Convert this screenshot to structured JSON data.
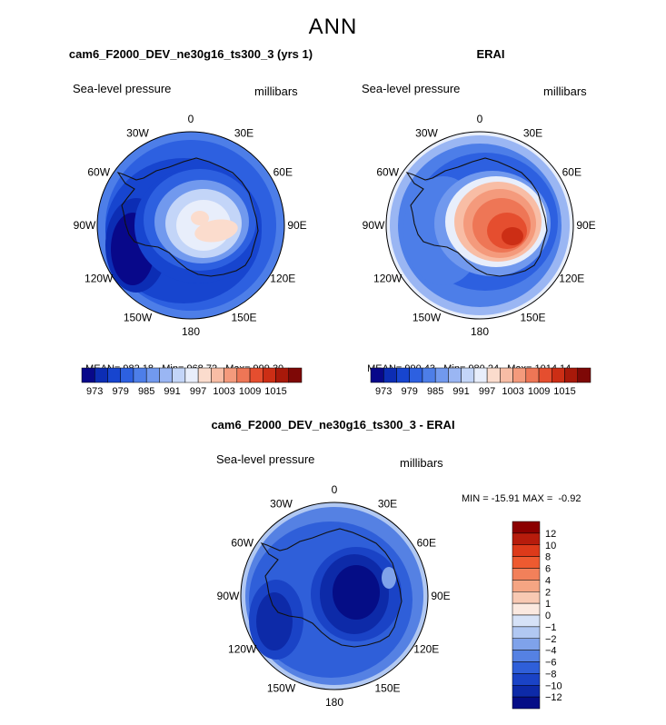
{
  "main_title": "ANN",
  "chart_data": [
    {
      "type": "polar-contour",
      "title": "cam6_F2000_DEV_ne30g16_ts300_3 (yrs 1)",
      "left_label": "Sea-level pressure",
      "right_label": "millibars",
      "lon_labels": [
        "0",
        "30E",
        "60E",
        "90E",
        "120E",
        "150E",
        "180",
        "150W",
        "120W",
        "90W",
        "60W",
        "30W"
      ],
      "stats": {
        "mean": "982.18",
        "min": "968.72",
        "max": "999.30"
      },
      "colorbar": {
        "orientation": "horizontal",
        "tick_labels": [
          "973",
          "979",
          "985",
          "991",
          "997",
          "1003",
          "1009",
          "1015"
        ],
        "colors": [
          "#08088a",
          "#0c2db4",
          "#1745cf",
          "#2d60e0",
          "#4d7ee8",
          "#7199ee",
          "#9ab6f3",
          "#c3d5f8",
          "#e8eefb",
          "#fbdccd",
          "#f8bda5",
          "#f49a7c",
          "#ee7656",
          "#e54e2f",
          "#cc2e15",
          "#a8190a",
          "#7e0806"
        ]
      }
    },
    {
      "type": "polar-contour",
      "title": "ERAI",
      "left_label": "Sea-level pressure",
      "right_label": "millibars",
      "lon_labels": [
        "0",
        "30E",
        "60E",
        "90E",
        "120E",
        "150E",
        "180",
        "150W",
        "120W",
        "90W",
        "60W",
        "30W"
      ],
      "stats": {
        "mean": "990.43",
        "min": "980.24",
        "max": "1014.14"
      },
      "colorbar": {
        "orientation": "horizontal",
        "tick_labels": [
          "973",
          "979",
          "985",
          "991",
          "997",
          "1003",
          "1009",
          "1015"
        ],
        "colors": [
          "#08088a",
          "#0c2db4",
          "#1745cf",
          "#2d60e0",
          "#4d7ee8",
          "#7199ee",
          "#9ab6f3",
          "#c3d5f8",
          "#e8eefb",
          "#fbdccd",
          "#f8bda5",
          "#f49a7c",
          "#ee7656",
          "#e54e2f",
          "#cc2e15",
          "#a8190a",
          "#7e0806"
        ]
      }
    },
    {
      "type": "polar-contour",
      "title": "cam6_F2000_DEV_ne30g16_ts300_3 - ERAI",
      "left_label": "Sea-level pressure",
      "right_label": "millibars",
      "lon_labels": [
        "0",
        "30E",
        "60E",
        "90E",
        "120E",
        "150E",
        "180",
        "150W",
        "120W",
        "90W",
        "60W",
        "30W"
      ],
      "stats_line": "MIN = -15.91 MAX =  -0.92",
      "colorbar": {
        "orientation": "vertical",
        "tick_labels": [
          "12",
          "10",
          "8",
          "6",
          "4",
          "2",
          "1",
          "0",
          "−1",
          "−2",
          "−4",
          "−6",
          "−8",
          "−10",
          "−12"
        ],
        "colors": [
          "#8b0000",
          "#b71c0c",
          "#dd3a1a",
          "#ee5a30",
          "#f2805a",
          "#f5a583",
          "#f8c9b3",
          "#fbe9e0",
          "#d6e2f7",
          "#b1c8f2",
          "#7fa2ea",
          "#5581e3",
          "#2f5fd9",
          "#1a43c6",
          "#0d2aa8",
          "#050d86"
        ]
      }
    }
  ]
}
